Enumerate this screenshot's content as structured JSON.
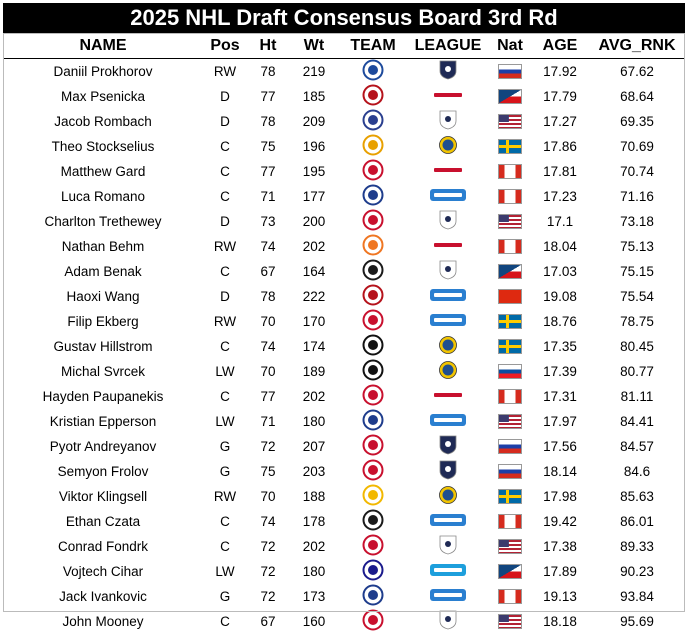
{
  "title": "2025 NHL Draft Consensus Board 3rd Rd",
  "columns": [
    "NAME",
    "Pos",
    "Ht",
    "Wt",
    "TEAM",
    "LEAGUE",
    "Nat",
    "AGE",
    "AVG_RNK"
  ],
  "rows": [
    {
      "name": "Daniil Prokhorov",
      "pos": "RW",
      "ht": "78",
      "wt": "219",
      "team_icon": "dynamo-logo",
      "team_color": "#1d4a9c",
      "league": "MHL",
      "nat": "RUS",
      "age": "17.92",
      "avg_rnk": "67.62"
    },
    {
      "name": "Max Psenicka",
      "pos": "D",
      "ht": "77",
      "wt": "185",
      "team_icon": "winterhawks-logo",
      "team_color": "#b5121b",
      "league": "WHL",
      "nat": "CZE",
      "age": "17.79",
      "avg_rnk": "68.64"
    },
    {
      "name": "Jacob Rombach",
      "pos": "D",
      "ht": "78",
      "wt": "209",
      "team_icon": "tri-city-storm-logo",
      "team_color": "#2a3f8f",
      "league": "USHL",
      "nat": "USA",
      "age": "17.27",
      "avg_rnk": "69.35"
    },
    {
      "name": "Theo Stockselius",
      "pos": "C",
      "ht": "75",
      "wt": "196",
      "team_icon": "djurgarden-logo",
      "team_color": "#e8a000",
      "league": "J20",
      "nat": "SWE",
      "age": "17.86",
      "avg_rnk": "70.69"
    },
    {
      "name": "Matthew Gard",
      "pos": "C",
      "ht": "77",
      "wt": "195",
      "team_icon": "red-deer-rebels-logo",
      "team_color": "#c8102e",
      "league": "WHL",
      "nat": "CAN",
      "age": "17.81",
      "avg_rnk": "70.74"
    },
    {
      "name": "Luca Romano",
      "pos": "C",
      "ht": "71",
      "wt": "177",
      "team_icon": "kitchener-rangers-logo",
      "team_color": "#1e3c8c",
      "league": "OHL",
      "nat": "CAN",
      "age": "17.23",
      "avg_rnk": "71.16"
    },
    {
      "name": "Charlton Trethewey",
      "pos": "D",
      "ht": "73",
      "wt": "200",
      "team_icon": "ntdp-logo",
      "team_color": "#c8102e",
      "league": "USHL",
      "nat": "USA",
      "age": "17.1",
      "avg_rnk": "73.18"
    },
    {
      "name": "Nathan Behm",
      "pos": "RW",
      "ht": "74",
      "wt": "202",
      "team_icon": "kamloops-blazers-logo",
      "team_color": "#ef7622",
      "league": "WHL",
      "nat": "CAN",
      "age": "18.04",
      "avg_rnk": "75.13"
    },
    {
      "name": "Adam Benak",
      "pos": "C",
      "ht": "67",
      "wt": "164",
      "team_icon": "youngstown-phantoms-logo",
      "team_color": "#1a1a1a",
      "league": "USHL",
      "nat": "CZE",
      "age": "17.03",
      "avg_rnk": "75.15"
    },
    {
      "name": "Haoxi Wang",
      "pos": "D",
      "ht": "78",
      "wt": "222",
      "team_icon": "oshawa-generals-logo",
      "team_color": "#b5121b",
      "league": "OHL",
      "nat": "CHN",
      "age": "19.08",
      "avg_rnk": "75.54"
    },
    {
      "name": "Filip Ekberg",
      "pos": "RW",
      "ht": "70",
      "wt": "170",
      "team_icon": "ottawa-67s-logo",
      "team_color": "#c8102e",
      "league": "OHL",
      "nat": "SWE",
      "age": "18.76",
      "avg_rnk": "78.75"
    },
    {
      "name": "Gustav Hillstrom",
      "pos": "C",
      "ht": "74",
      "wt": "174",
      "team_icon": "brynas-logo",
      "team_color": "#111111",
      "league": "J20",
      "nat": "SWE",
      "age": "17.35",
      "avg_rnk": "80.45"
    },
    {
      "name": "Michal Svrcek",
      "pos": "LW",
      "ht": "70",
      "wt": "189",
      "team_icon": "brynas-logo",
      "team_color": "#111111",
      "league": "J20",
      "nat": "SVK",
      "age": "17.39",
      "avg_rnk": "80.77"
    },
    {
      "name": "Hayden Paupanekis",
      "pos": "C",
      "ht": "77",
      "wt": "202",
      "team_icon": "spokane-chiefs-logo",
      "team_color": "#c8102e",
      "league": "WHL",
      "nat": "CAN",
      "age": "17.31",
      "avg_rnk": "81.11"
    },
    {
      "name": "Kristian Epperson",
      "pos": "LW",
      "ht": "71",
      "wt": "180",
      "team_icon": "saginaw-spirit-logo",
      "team_color": "#1e3c8c",
      "league": "OHL",
      "nat": "USA",
      "age": "17.97",
      "avg_rnk": "84.41"
    },
    {
      "name": "Pyotr Andreyanov",
      "pos": "G",
      "ht": "72",
      "wt": "207",
      "team_icon": "cska-logo",
      "team_color": "#c8102e",
      "league": "MHL",
      "nat": "RUS",
      "age": "17.56",
      "avg_rnk": "84.57"
    },
    {
      "name": "Semyon Frolov",
      "pos": "G",
      "ht": "75",
      "wt": "203",
      "team_icon": "spartak-logo",
      "team_color": "#c8102e",
      "league": "MHL",
      "nat": "RUS",
      "age": "18.14",
      "avg_rnk": "84.6"
    },
    {
      "name": "Viktor Klingsell",
      "pos": "RW",
      "ht": "70",
      "wt": "188",
      "team_icon": "skelleftea-logo",
      "team_color": "#f2b800",
      "league": "J20",
      "nat": "SWE",
      "age": "17.98",
      "avg_rnk": "85.63"
    },
    {
      "name": "Ethan Czata",
      "pos": "C",
      "ht": "74",
      "wt": "178",
      "team_icon": "niagara-icedogs-logo",
      "team_color": "#1a1a1a",
      "league": "OHL",
      "nat": "CAN",
      "age": "19.42",
      "avg_rnk": "86.01"
    },
    {
      "name": "Conrad Fondrk",
      "pos": "C",
      "ht": "72",
      "wt": "202",
      "team_icon": "ntdp-logo",
      "team_color": "#c8102e",
      "league": "USHL",
      "nat": "USA",
      "age": "17.38",
      "avg_rnk": "89.33"
    },
    {
      "name": "Vojtech Cihar",
      "pos": "LW",
      "ht": "72",
      "wt": "180",
      "team_icon": "energie-karlovy-vary-logo",
      "team_color": "#1a1a8c",
      "league": "Tipsport ELH",
      "nat": "CZE",
      "age": "17.89",
      "avg_rnk": "90.23"
    },
    {
      "name": "Jack Ivankovic",
      "pos": "G",
      "ht": "72",
      "wt": "173",
      "team_icon": "brampton-steelheads-logo",
      "team_color": "#1e3c8c",
      "league": "OHL",
      "nat": "CAN",
      "age": "19.13",
      "avg_rnk": "93.84"
    },
    {
      "name": "John Mooney",
      "pos": "C",
      "ht": "67",
      "wt": "160",
      "team_icon": "ntdp-logo",
      "team_color": "#c8102e",
      "league": "USHL",
      "nat": "USA",
      "age": "18.18",
      "avg_rnk": "95.69"
    }
  ]
}
